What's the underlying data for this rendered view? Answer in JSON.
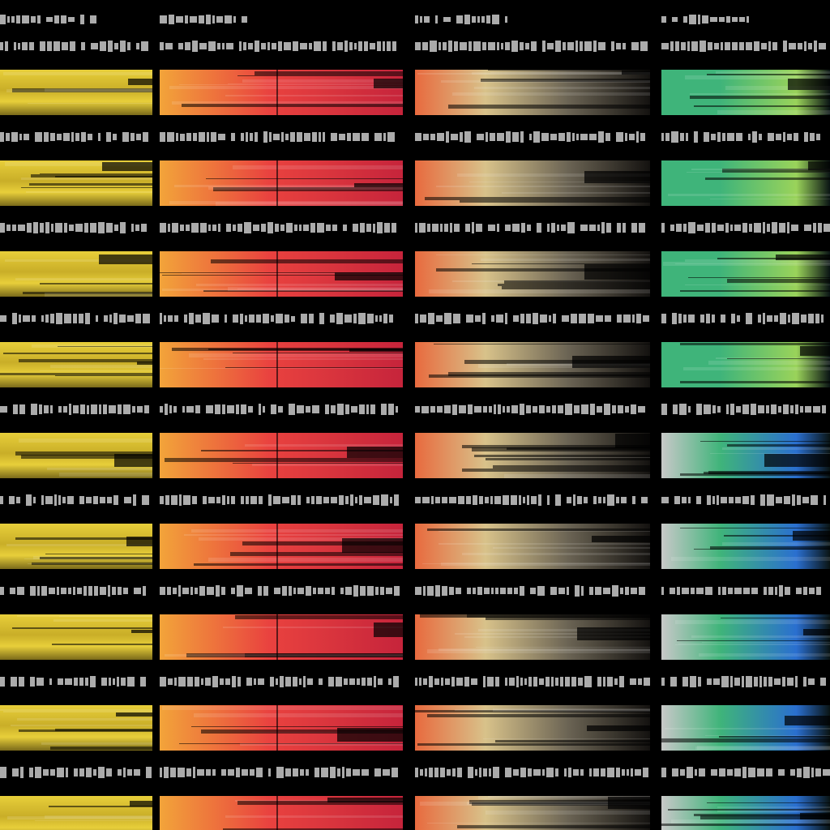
{
  "columns": [
    {
      "name": "column-1",
      "palette": [
        "#e8cf3a",
        "#c9ae28",
        "#7a6a1a",
        "#1a1608"
      ]
    },
    {
      "name": "column-2",
      "palette": [
        "#f2a43a",
        "#e9423f",
        "#c6243b",
        "#2a0808"
      ]
    },
    {
      "name": "column-3",
      "palette": [
        "#d8c28a",
        "#e86a3e",
        "#6b6454",
        "#141210"
      ]
    },
    {
      "name": "column-4",
      "palette": [
        "#3fb47a",
        "#9ad35a",
        "#2a6fd0",
        "#0a1414"
      ]
    }
  ],
  "row_count": 9,
  "background": "#000000",
  "label_color": "#c9c9c9"
}
